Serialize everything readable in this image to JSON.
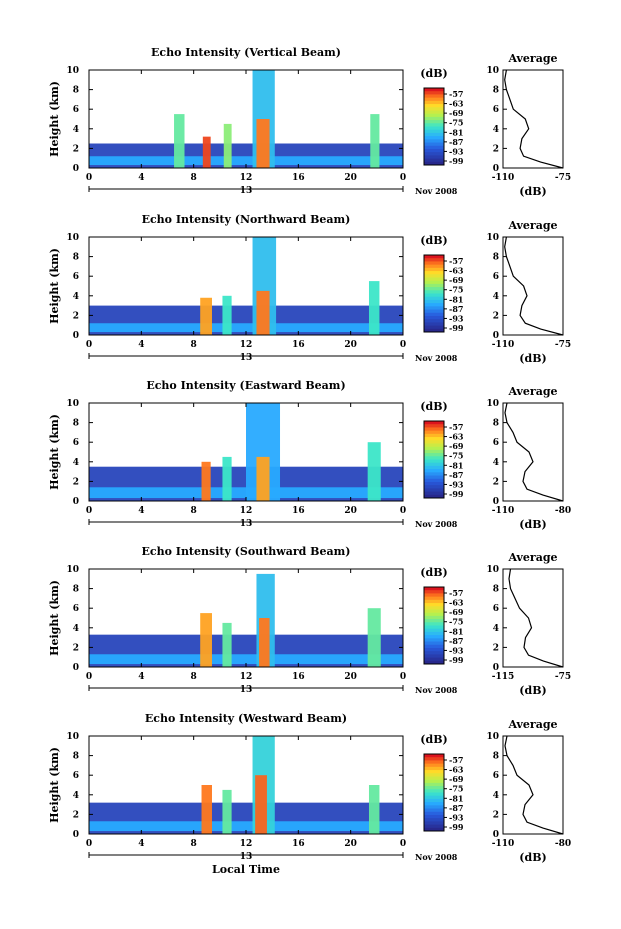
{
  "chart_data": [
    {
      "type": "heatmap",
      "title": "Echo Intensity (Vertical Beam)",
      "ylabel": "Height (km)",
      "xlabel": "",
      "x_range": [
        0,
        24
      ],
      "y_range": [
        0,
        10
      ],
      "x_ticks": [
        "0",
        "4",
        "8",
        "12",
        "16",
        "20",
        "0"
      ],
      "y_ticks": [
        "0",
        "2",
        "4",
        "6",
        "8",
        "10"
      ],
      "date_label": "13",
      "month_label": "Nov 2008",
      "colorbar": {
        "unit": "(dB)",
        "ticks": [
          "-57",
          "-63",
          "-69",
          "-75",
          "-81",
          "-87",
          "-93",
          "-99"
        ]
      },
      "cells": [
        {
          "x0": 0,
          "x1": 24,
          "y0": 0,
          "y1": 2.5,
          "level": 0.12
        },
        {
          "x0": 0,
          "x1": 24,
          "y0": 0.3,
          "y1": 1.2,
          "level": 0.35
        },
        {
          "x0": 6.5,
          "x1": 7.3,
          "y0": 0,
          "y1": 5.5,
          "level": 0.55
        },
        {
          "x0": 8.7,
          "x1": 9.3,
          "y0": 0,
          "y1": 3.2,
          "level": 0.95
        },
        {
          "x0": 10.3,
          "x1": 10.9,
          "y0": 0,
          "y1": 4.5,
          "level": 0.6
        },
        {
          "x0": 12.5,
          "x1": 14.2,
          "y0": 0,
          "y1": 10,
          "level": 0.4
        },
        {
          "x0": 12.8,
          "x1": 13.8,
          "y0": 0,
          "y1": 5,
          "level": 0.9
        },
        {
          "x0": 21.5,
          "x1": 22.2,
          "y0": 0,
          "y1": 5.5,
          "level": 0.55
        }
      ],
      "average": {
        "title": "Average",
        "xlabel": "(dB)",
        "x_ticks": [
          "-110",
          "-75"
        ],
        "x_range": [
          -110,
          -75
        ],
        "profile": [
          [
            -75,
            0
          ],
          [
            -88,
            0.6
          ],
          [
            -98,
            1.2
          ],
          [
            -100,
            2
          ],
          [
            -99,
            3
          ],
          [
            -95,
            4
          ],
          [
            -97,
            5
          ],
          [
            -104,
            6
          ],
          [
            -106,
            7
          ],
          [
            -108,
            8
          ],
          [
            -109,
            9
          ],
          [
            -108,
            10
          ]
        ]
      }
    },
    {
      "type": "heatmap",
      "title": "Echo Intensity (Northward Beam)",
      "ylabel": "Height (km)",
      "xlabel": "",
      "x_range": [
        0,
        24
      ],
      "y_range": [
        0,
        10
      ],
      "x_ticks": [
        "0",
        "4",
        "8",
        "12",
        "16",
        "20",
        "0"
      ],
      "y_ticks": [
        "0",
        "2",
        "4",
        "6",
        "8",
        "10"
      ],
      "date_label": "13",
      "month_label": "Nov 2008",
      "colorbar": {
        "unit": "(dB)",
        "ticks": [
          "-57",
          "-63",
          "-69",
          "-75",
          "-81",
          "-87",
          "-93",
          "-99"
        ]
      },
      "cells": [
        {
          "x0": 0,
          "x1": 24,
          "y0": 0,
          "y1": 3,
          "level": 0.12
        },
        {
          "x0": 0,
          "x1": 24,
          "y0": 0.3,
          "y1": 1.2,
          "level": 0.35
        },
        {
          "x0": 8.5,
          "x1": 9.4,
          "y0": 0,
          "y1": 3.8,
          "level": 0.85
        },
        {
          "x0": 10.2,
          "x1": 10.9,
          "y0": 0,
          "y1": 4,
          "level": 0.5
        },
        {
          "x0": 12.5,
          "x1": 14.3,
          "y0": 0,
          "y1": 10,
          "level": 0.4
        },
        {
          "x0": 12.8,
          "x1": 13.8,
          "y0": 0,
          "y1": 4.5,
          "level": 0.9
        },
        {
          "x0": 21.4,
          "x1": 22.2,
          "y0": 0,
          "y1": 5.5,
          "level": 0.5
        }
      ],
      "average": {
        "title": "Average",
        "xlabel": "(dB)",
        "x_ticks": [
          "-110",
          "-75"
        ],
        "x_range": [
          -110,
          -75
        ],
        "profile": [
          [
            -75,
            0
          ],
          [
            -88,
            0.6
          ],
          [
            -97,
            1.2
          ],
          [
            -100,
            2
          ],
          [
            -99,
            3
          ],
          [
            -96,
            4
          ],
          [
            -98,
            5
          ],
          [
            -104,
            6
          ],
          [
            -106,
            7
          ],
          [
            -108,
            8
          ],
          [
            -109,
            9
          ],
          [
            -108,
            10
          ]
        ]
      }
    },
    {
      "type": "heatmap",
      "title": "Echo Intensity (Eastward Beam)",
      "ylabel": "Height (km)",
      "xlabel": "",
      "x_range": [
        0,
        24
      ],
      "y_range": [
        0,
        10
      ],
      "x_ticks": [
        "0",
        "4",
        "8",
        "12",
        "16",
        "20",
        "0"
      ],
      "y_ticks": [
        "0",
        "2",
        "4",
        "6",
        "8",
        "10"
      ],
      "date_label": "13",
      "month_label": "Nov 2008",
      "colorbar": {
        "unit": "(dB)",
        "ticks": [
          "-57",
          "-63",
          "-69",
          "-75",
          "-81",
          "-87",
          "-93",
          "-99"
        ]
      },
      "cells": [
        {
          "x0": 0,
          "x1": 24,
          "y0": 0,
          "y1": 3.5,
          "level": 0.12
        },
        {
          "x0": 0,
          "x1": 24,
          "y0": 0.3,
          "y1": 1.4,
          "level": 0.35
        },
        {
          "x0": 8.6,
          "x1": 9.3,
          "y0": 0,
          "y1": 4,
          "level": 0.9
        },
        {
          "x0": 10.2,
          "x1": 10.9,
          "y0": 0,
          "y1": 4.5,
          "level": 0.5
        },
        {
          "x0": 12.0,
          "x1": 14.6,
          "y0": 0,
          "y1": 10,
          "level": 0.35
        },
        {
          "x0": 12.8,
          "x1": 13.8,
          "y0": 0,
          "y1": 4.5,
          "level": 0.85
        },
        {
          "x0": 21.3,
          "x1": 22.3,
          "y0": 0,
          "y1": 6,
          "level": 0.5
        }
      ],
      "average": {
        "title": "Average",
        "xlabel": "(dB)",
        "x_ticks": [
          "-110",
          "-80"
        ],
        "x_range": [
          -110,
          -80
        ],
        "profile": [
          [
            -80,
            0
          ],
          [
            -90,
            0.6
          ],
          [
            -98,
            1.2
          ],
          [
            -100,
            2
          ],
          [
            -99,
            3
          ],
          [
            -95,
            4
          ],
          [
            -97,
            5
          ],
          [
            -103,
            6
          ],
          [
            -105,
            7
          ],
          [
            -108,
            8
          ],
          [
            -109,
            9
          ],
          [
            -108,
            10
          ]
        ]
      }
    },
    {
      "type": "heatmap",
      "title": "Echo Intensity (Southward Beam)",
      "ylabel": "Height (km)",
      "xlabel": "",
      "x_range": [
        0,
        24
      ],
      "y_range": [
        0,
        10
      ],
      "x_ticks": [
        "0",
        "4",
        "8",
        "12",
        "16",
        "20",
        "0"
      ],
      "y_ticks": [
        "0",
        "2",
        "4",
        "6",
        "8",
        "10"
      ],
      "date_label": "13",
      "month_label": "Nov 2008",
      "colorbar": {
        "unit": "(dB)",
        "ticks": [
          "-57",
          "-63",
          "-69",
          "-75",
          "-81",
          "-87",
          "-93",
          "-99"
        ]
      },
      "cells": [
        {
          "x0": 0,
          "x1": 24,
          "y0": 0,
          "y1": 3.3,
          "level": 0.12
        },
        {
          "x0": 0,
          "x1": 24,
          "y0": 0.3,
          "y1": 1.3,
          "level": 0.35
        },
        {
          "x0": 8.5,
          "x1": 9.4,
          "y0": 0,
          "y1": 5.5,
          "level": 0.85
        },
        {
          "x0": 10.2,
          "x1": 10.9,
          "y0": 0,
          "y1": 4.5,
          "level": 0.55
        },
        {
          "x0": 12.8,
          "x1": 14.2,
          "y0": 0,
          "y1": 9.5,
          "level": 0.4
        },
        {
          "x0": 13.0,
          "x1": 13.8,
          "y0": 0,
          "y1": 5,
          "level": 0.9
        },
        {
          "x0": 21.3,
          "x1": 22.3,
          "y0": 0,
          "y1": 6,
          "level": 0.55
        }
      ],
      "average": {
        "title": "Average",
        "xlabel": "(dB)",
        "x_ticks": [
          "-115",
          "-75"
        ],
        "x_range": [
          -115,
          -75
        ],
        "profile": [
          [
            -75,
            0
          ],
          [
            -88,
            0.6
          ],
          [
            -98,
            1.2
          ],
          [
            -101,
            2
          ],
          [
            -100,
            3
          ],
          [
            -96,
            4
          ],
          [
            -98,
            5
          ],
          [
            -104,
            6
          ],
          [
            -107,
            7
          ],
          [
            -110,
            8
          ],
          [
            -111,
            9
          ],
          [
            -110,
            10
          ]
        ]
      }
    },
    {
      "type": "heatmap",
      "title": "Echo Intensity (Westward Beam)",
      "ylabel": "Height (km)",
      "xlabel": "Local Time",
      "x_range": [
        0,
        24
      ],
      "y_range": [
        0,
        10
      ],
      "x_ticks": [
        "0",
        "4",
        "8",
        "12",
        "16",
        "20",
        "0"
      ],
      "y_ticks": [
        "0",
        "2",
        "4",
        "6",
        "8",
        "10"
      ],
      "date_label": "13",
      "month_label": "Nov 2008",
      "colorbar": {
        "unit": "(dB)",
        "ticks": [
          "-57",
          "-63",
          "-69",
          "-75",
          "-81",
          "-87",
          "-93",
          "-99"
        ]
      },
      "cells": [
        {
          "x0": 0,
          "x1": 24,
          "y0": 0,
          "y1": 3.2,
          "level": 0.12
        },
        {
          "x0": 0,
          "x1": 24,
          "y0": 0.3,
          "y1": 1.3,
          "level": 0.35
        },
        {
          "x0": 8.6,
          "x1": 9.4,
          "y0": 0,
          "y1": 5,
          "level": 0.9
        },
        {
          "x0": 10.2,
          "x1": 10.9,
          "y0": 0,
          "y1": 4.5,
          "level": 0.55
        },
        {
          "x0": 12.5,
          "x1": 14.2,
          "y0": 0,
          "y1": 10,
          "level": 0.45
        },
        {
          "x0": 12.7,
          "x1": 13.6,
          "y0": 0,
          "y1": 6,
          "level": 0.92
        },
        {
          "x0": 21.4,
          "x1": 22.2,
          "y0": 0,
          "y1": 5,
          "level": 0.55
        }
      ],
      "average": {
        "title": "Average",
        "xlabel": "(dB)",
        "x_ticks": [
          "-110",
          "-80"
        ],
        "x_range": [
          -110,
          -80
        ],
        "profile": [
          [
            -80,
            0
          ],
          [
            -90,
            0.6
          ],
          [
            -98,
            1.2
          ],
          [
            -100,
            2
          ],
          [
            -99,
            3
          ],
          [
            -95,
            4
          ],
          [
            -97,
            5
          ],
          [
            -103,
            6
          ],
          [
            -105,
            7
          ],
          [
            -108,
            8
          ],
          [
            -109,
            9
          ],
          [
            -108,
            10
          ]
        ]
      }
    }
  ]
}
